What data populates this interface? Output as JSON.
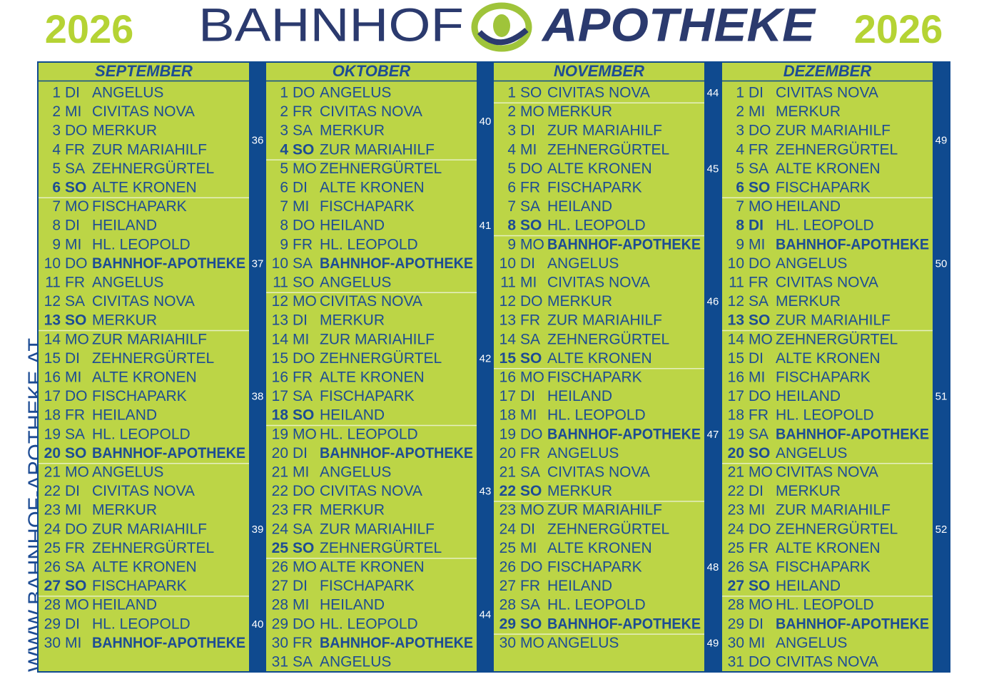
{
  "header": {
    "year_left": "2026",
    "brand_left": "BAHNHOF",
    "brand_right": "APOTHEKE",
    "year_right": "2026"
  },
  "side_text": "WWW.BAHNHOF-APOTHEKE.AT",
  "months": [
    {
      "name": "SEPTEMBER",
      "weeks": [
        {
          "number": 36,
          "days": [
            {
              "day": 1,
              "weekday": "DI",
              "pharmacy": "ANGELUS"
            },
            {
              "day": 2,
              "weekday": "MI",
              "pharmacy": "CIVITAS NOVA"
            },
            {
              "day": 3,
              "weekday": "DO",
              "pharmacy": "MERKUR"
            },
            {
              "day": 4,
              "weekday": "FR",
              "pharmacy": "ZUR MARIAHILF"
            },
            {
              "day": 5,
              "weekday": "SA",
              "pharmacy": "ZEHNERGÜRTEL"
            },
            {
              "day": 6,
              "weekday": "SO",
              "pharmacy": "ALTE KRONEN",
              "style": "sunday"
            }
          ]
        },
        {
          "number": 37,
          "days": [
            {
              "day": 7,
              "weekday": "MO",
              "pharmacy": "FISCHAPARK"
            },
            {
              "day": 8,
              "weekday": "DI",
              "pharmacy": "HEILAND"
            },
            {
              "day": 9,
              "weekday": "MI",
              "pharmacy": "HL. LEOPOLD"
            },
            {
              "day": 10,
              "weekday": "DO",
              "pharmacy": "BAHNHOF-APOTHEKE",
              "own": true
            },
            {
              "day": 11,
              "weekday": "FR",
              "pharmacy": "ANGELUS"
            },
            {
              "day": 12,
              "weekday": "SA",
              "pharmacy": "CIVITAS NOVA"
            },
            {
              "day": 13,
              "weekday": "SO",
              "pharmacy": "MERKUR",
              "style": "sunday"
            }
          ]
        },
        {
          "number": 38,
          "days": [
            {
              "day": 14,
              "weekday": "MO",
              "pharmacy": "ZUR MARIAHILF"
            },
            {
              "day": 15,
              "weekday": "DI",
              "pharmacy": "ZEHNERGÜRTEL"
            },
            {
              "day": 16,
              "weekday": "MI",
              "pharmacy": "ALTE KRONEN"
            },
            {
              "day": 17,
              "weekday": "DO",
              "pharmacy": "FISCHAPARK"
            },
            {
              "day": 18,
              "weekday": "FR",
              "pharmacy": "HEILAND"
            },
            {
              "day": 19,
              "weekday": "SA",
              "pharmacy": "HL. LEOPOLD"
            },
            {
              "day": 20,
              "weekday": "SO",
              "pharmacy": "BAHNHOF-APOTHEKE",
              "style": "sunday",
              "own": true
            }
          ]
        },
        {
          "number": 39,
          "days": [
            {
              "day": 21,
              "weekday": "MO",
              "pharmacy": "ANGELUS"
            },
            {
              "day": 22,
              "weekday": "DI",
              "pharmacy": "CIVITAS NOVA"
            },
            {
              "day": 23,
              "weekday": "MI",
              "pharmacy": "MERKUR"
            },
            {
              "day": 24,
              "weekday": "DO",
              "pharmacy": "ZUR MARIAHILF"
            },
            {
              "day": 25,
              "weekday": "FR",
              "pharmacy": "ZEHNERGÜRTEL"
            },
            {
              "day": 26,
              "weekday": "SA",
              "pharmacy": "ALTE KRONEN"
            },
            {
              "day": 27,
              "weekday": "SO",
              "pharmacy": "FISCHAPARK",
              "style": "sunday"
            }
          ]
        },
        {
          "number": 40,
          "days": [
            {
              "day": 28,
              "weekday": "MO",
              "pharmacy": "HEILAND"
            },
            {
              "day": 29,
              "weekday": "DI",
              "pharmacy": "HL. LEOPOLD"
            },
            {
              "day": 30,
              "weekday": "MI",
              "pharmacy": "BAHNHOF-APOTHEKE",
              "own": true
            }
          ]
        }
      ]
    },
    {
      "name": "OKTOBER",
      "weeks": [
        {
          "number": 40,
          "days": [
            {
              "day": 1,
              "weekday": "DO",
              "pharmacy": "ANGELUS"
            },
            {
              "day": 2,
              "weekday": "FR",
              "pharmacy": "CIVITAS NOVA"
            },
            {
              "day": 3,
              "weekday": "SA",
              "pharmacy": "MERKUR"
            },
            {
              "day": 4,
              "weekday": "SO",
              "pharmacy": "ZUR MARIAHILF",
              "style": "sunday"
            }
          ]
        },
        {
          "number": 41,
          "days": [
            {
              "day": 5,
              "weekday": "MO",
              "pharmacy": "ZEHNERGÜRTEL"
            },
            {
              "day": 6,
              "weekday": "DI",
              "pharmacy": "ALTE KRONEN"
            },
            {
              "day": 7,
              "weekday": "MI",
              "pharmacy": "FISCHAPARK"
            },
            {
              "day": 8,
              "weekday": "DO",
              "pharmacy": "HEILAND"
            },
            {
              "day": 9,
              "weekday": "FR",
              "pharmacy": "HL. LEOPOLD"
            },
            {
              "day": 10,
              "weekday": "SA",
              "pharmacy": "BAHNHOF-APOTHEKE",
              "own": true
            },
            {
              "day": 11,
              "weekday": "SO",
              "pharmacy": "ANGELUS"
            }
          ]
        },
        {
          "number": 42,
          "days": [
            {
              "day": 12,
              "weekday": "MO",
              "pharmacy": "CIVITAS NOVA"
            },
            {
              "day": 13,
              "weekday": "DI",
              "pharmacy": "MERKUR"
            },
            {
              "day": 14,
              "weekday": "MI",
              "pharmacy": "ZUR MARIAHILF"
            },
            {
              "day": 15,
              "weekday": "DO",
              "pharmacy": "ZEHNERGÜRTEL"
            },
            {
              "day": 16,
              "weekday": "FR",
              "pharmacy": "ALTE KRONEN"
            },
            {
              "day": 17,
              "weekday": "SA",
              "pharmacy": "FISCHAPARK"
            },
            {
              "day": 18,
              "weekday": "SO",
              "pharmacy": "HEILAND",
              "style": "sunday"
            }
          ]
        },
        {
          "number": 43,
          "days": [
            {
              "day": 19,
              "weekday": "MO",
              "pharmacy": "HL. LEOPOLD"
            },
            {
              "day": 20,
              "weekday": "DI",
              "pharmacy": "BAHNHOF-APOTHEKE",
              "own": true
            },
            {
              "day": 21,
              "weekday": "MI",
              "pharmacy": "ANGELUS"
            },
            {
              "day": 22,
              "weekday": "DO",
              "pharmacy": "CIVITAS NOVA"
            },
            {
              "day": 23,
              "weekday": "FR",
              "pharmacy": "MERKUR"
            },
            {
              "day": 24,
              "weekday": "SA",
              "pharmacy": "ZUR MARIAHILF"
            },
            {
              "day": 25,
              "weekday": "SO",
              "pharmacy": "ZEHNERGÜRTEL",
              "style": "sunday"
            }
          ]
        },
        {
          "number": 44,
          "days": [
            {
              "day": 26,
              "weekday": "MO",
              "pharmacy": "ALTE KRONEN",
              "style": "holiday"
            },
            {
              "day": 27,
              "weekday": "DI",
              "pharmacy": "FISCHAPARK"
            },
            {
              "day": 28,
              "weekday": "MI",
              "pharmacy": "HEILAND"
            },
            {
              "day": 29,
              "weekday": "DO",
              "pharmacy": "HL. LEOPOLD"
            },
            {
              "day": 30,
              "weekday": "FR",
              "pharmacy": "BAHNHOF-APOTHEKE",
              "own": true
            },
            {
              "day": 31,
              "weekday": "SA",
              "pharmacy": "ANGELUS"
            }
          ]
        }
      ]
    },
    {
      "name": "NOVEMBER",
      "weeks": [
        {
          "number": 44,
          "days": [
            {
              "day": 1,
              "weekday": "SO",
              "pharmacy": "CIVITAS NOVA",
              "style": "holiday"
            }
          ]
        },
        {
          "number": 45,
          "days": [
            {
              "day": 2,
              "weekday": "MO",
              "pharmacy": "MERKUR"
            },
            {
              "day": 3,
              "weekday": "DI",
              "pharmacy": "ZUR MARIAHILF"
            },
            {
              "day": 4,
              "weekday": "MI",
              "pharmacy": "ZEHNERGÜRTEL"
            },
            {
              "day": 5,
              "weekday": "DO",
              "pharmacy": "ALTE KRONEN"
            },
            {
              "day": 6,
              "weekday": "FR",
              "pharmacy": "FISCHAPARK"
            },
            {
              "day": 7,
              "weekday": "SA",
              "pharmacy": "HEILAND"
            },
            {
              "day": 8,
              "weekday": "SO",
              "pharmacy": "HL. LEOPOLD",
              "style": "sunday"
            }
          ]
        },
        {
          "number": 46,
          "days": [
            {
              "day": 9,
              "weekday": "MO",
              "pharmacy": "BAHNHOF-APOTHEKE",
              "own": true
            },
            {
              "day": 10,
              "weekday": "DI",
              "pharmacy": "ANGELUS"
            },
            {
              "day": 11,
              "weekday": "MI",
              "pharmacy": "CIVITAS NOVA"
            },
            {
              "day": 12,
              "weekday": "DO",
              "pharmacy": "MERKUR"
            },
            {
              "day": 13,
              "weekday": "FR",
              "pharmacy": "ZUR MARIAHILF"
            },
            {
              "day": 14,
              "weekday": "SA",
              "pharmacy": "ZEHNERGÜRTEL"
            },
            {
              "day": 15,
              "weekday": "SO",
              "pharmacy": "ALTE KRONEN",
              "style": "sunday"
            }
          ]
        },
        {
          "number": 47,
          "days": [
            {
              "day": 16,
              "weekday": "MO",
              "pharmacy": "FISCHAPARK"
            },
            {
              "day": 17,
              "weekday": "DI",
              "pharmacy": "HEILAND"
            },
            {
              "day": 18,
              "weekday": "MI",
              "pharmacy": "HL. LEOPOLD"
            },
            {
              "day": 19,
              "weekday": "DO",
              "pharmacy": "BAHNHOF-APOTHEKE",
              "own": true
            },
            {
              "day": 20,
              "weekday": "FR",
              "pharmacy": "ANGELUS"
            },
            {
              "day": 21,
              "weekday": "SA",
              "pharmacy": "CIVITAS NOVA"
            },
            {
              "day": 22,
              "weekday": "SO",
              "pharmacy": "MERKUR",
              "style": "sunday"
            }
          ]
        },
        {
          "number": 48,
          "days": [
            {
              "day": 23,
              "weekday": "MO",
              "pharmacy": "ZUR MARIAHILF"
            },
            {
              "day": 24,
              "weekday": "DI",
              "pharmacy": "ZEHNERGÜRTEL"
            },
            {
              "day": 25,
              "weekday": "MI",
              "pharmacy": "ALTE KRONEN"
            },
            {
              "day": 26,
              "weekday": "DO",
              "pharmacy": "FISCHAPARK"
            },
            {
              "day": 27,
              "weekday": "FR",
              "pharmacy": "HEILAND"
            },
            {
              "day": 28,
              "weekday": "SA",
              "pharmacy": "HL. LEOPOLD"
            },
            {
              "day": 29,
              "weekday": "SO",
              "pharmacy": "BAHNHOF-APOTHEKE",
              "style": "sunday",
              "own": true
            }
          ]
        },
        {
          "number": 49,
          "days": [
            {
              "day": 30,
              "weekday": "MO",
              "pharmacy": "ANGELUS"
            }
          ]
        }
      ]
    },
    {
      "name": "DEZEMBER",
      "weeks": [
        {
          "number": 49,
          "days": [
            {
              "day": 1,
              "weekday": "DI",
              "pharmacy": "CIVITAS NOVA"
            },
            {
              "day": 2,
              "weekday": "MI",
              "pharmacy": "MERKUR"
            },
            {
              "day": 3,
              "weekday": "DO",
              "pharmacy": "ZUR MARIAHILF"
            },
            {
              "day": 4,
              "weekday": "FR",
              "pharmacy": "ZEHNERGÜRTEL"
            },
            {
              "day": 5,
              "weekday": "SA",
              "pharmacy": "ALTE KRONEN"
            },
            {
              "day": 6,
              "weekday": "SO",
              "pharmacy": "FISCHAPARK",
              "style": "sunday"
            }
          ]
        },
        {
          "number": 50,
          "days": [
            {
              "day": 7,
              "weekday": "MO",
              "pharmacy": "HEILAND"
            },
            {
              "day": 8,
              "weekday": "DI",
              "pharmacy": "HL. LEOPOLD",
              "style": "sunday"
            },
            {
              "day": 9,
              "weekday": "MI",
              "pharmacy": "BAHNHOF-APOTHEKE",
              "own": true
            },
            {
              "day": 10,
              "weekday": "DO",
              "pharmacy": "ANGELUS"
            },
            {
              "day": 11,
              "weekday": "FR",
              "pharmacy": "CIVITAS NOVA"
            },
            {
              "day": 12,
              "weekday": "SA",
              "pharmacy": "MERKUR"
            },
            {
              "day": 13,
              "weekday": "SO",
              "pharmacy": "ZUR MARIAHILF",
              "style": "sunday"
            }
          ]
        },
        {
          "number": 51,
          "days": [
            {
              "day": 14,
              "weekday": "MO",
              "pharmacy": "ZEHNERGÜRTEL"
            },
            {
              "day": 15,
              "weekday": "DI",
              "pharmacy": "ALTE KRONEN"
            },
            {
              "day": 16,
              "weekday": "MI",
              "pharmacy": "FISCHAPARK"
            },
            {
              "day": 17,
              "weekday": "DO",
              "pharmacy": "HEILAND"
            },
            {
              "day": 18,
              "weekday": "FR",
              "pharmacy": "HL. LEOPOLD"
            },
            {
              "day": 19,
              "weekday": "SA",
              "pharmacy": "BAHNHOF-APOTHEKE",
              "own": true
            },
            {
              "day": 20,
              "weekday": "SO",
              "pharmacy": "ANGELUS",
              "style": "sunday"
            }
          ]
        },
        {
          "number": 52,
          "days": [
            {
              "day": 21,
              "weekday": "MO",
              "pharmacy": "CIVITAS NOVA"
            },
            {
              "day": 22,
              "weekday": "DI",
              "pharmacy": "MERKUR"
            },
            {
              "day": 23,
              "weekday": "MI",
              "pharmacy": "ZUR MARIAHILF"
            },
            {
              "day": 24,
              "weekday": "DO",
              "pharmacy": "ZEHNERGÜRTEL"
            },
            {
              "day": 25,
              "weekday": "FR",
              "pharmacy": "ALTE KRONEN",
              "style": "holiday"
            },
            {
              "day": 26,
              "weekday": "SA",
              "pharmacy": "FISCHAPARK",
              "style": "holiday"
            },
            {
              "day": 27,
              "weekday": "SO",
              "pharmacy": "HEILAND",
              "style": "sunday"
            }
          ]
        },
        {
          "days": [
            {
              "day": 28,
              "weekday": "MO",
              "pharmacy": "HL. LEOPOLD"
            },
            {
              "day": 29,
              "weekday": "DI",
              "pharmacy": "BAHNHOF-APOTHEKE",
              "own": true
            },
            {
              "day": 30,
              "weekday": "MI",
              "pharmacy": "ANGELUS"
            },
            {
              "day": 31,
              "weekday": "DO",
              "pharmacy": "CIVITAS NOVA"
            }
          ]
        }
      ]
    }
  ]
}
